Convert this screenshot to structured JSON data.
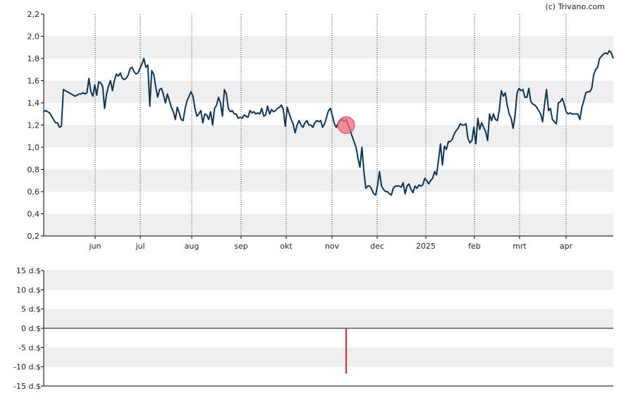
{
  "credit": "(c) Trivano.com",
  "colors": {
    "band": "#efefef",
    "line": "#0d3553",
    "marker": "#f06b7a",
    "bar": "#d62030",
    "axis": "#000000",
    "vgrid": "#333333"
  },
  "chart_data": [
    {
      "type": "line",
      "name": "price",
      "x_tick_labels": [
        "jun",
        "jul",
        "aug",
        "sep",
        "okt",
        "nov",
        "dec",
        "2025",
        "feb",
        "mrt",
        "apr"
      ],
      "y_tick_labels": [
        "2,2",
        "2,0",
        "1,8",
        "1,6",
        "1,4",
        "1,2",
        "1,0",
        "0,8",
        "0,6",
        "0,4",
        "0,2"
      ],
      "ylim": [
        0.2,
        2.2
      ],
      "grid": "alternating horizontal bands, dotted vertical month lines",
      "series_values": [
        1.32,
        1.33,
        1.32,
        1.31,
        1.28,
        1.25,
        1.22,
        1.22,
        1.18,
        1.19,
        1.52,
        1.51,
        1.5,
        1.49,
        1.48,
        1.47,
        1.46,
        1.47,
        1.48,
        1.48,
        1.49,
        1.48,
        1.49,
        1.62,
        1.5,
        1.46,
        1.56,
        1.47,
        1.59,
        1.58,
        1.55,
        1.35,
        1.48,
        1.55,
        1.6,
        1.51,
        1.6,
        1.66,
        1.64,
        1.67,
        1.62,
        1.61,
        1.62,
        1.65,
        1.71,
        1.72,
        1.68,
        1.66,
        1.67,
        1.71,
        1.75,
        1.8,
        1.72,
        1.74,
        1.37,
        1.69,
        1.66,
        1.55,
        1.45,
        1.52,
        1.53,
        1.47,
        1.4,
        1.48,
        1.42,
        1.36,
        1.32,
        1.25,
        1.36,
        1.31,
        1.25,
        1.24,
        1.35,
        1.42,
        1.46,
        1.5,
        1.46,
        1.35,
        1.28,
        1.3,
        1.33,
        1.22,
        1.3,
        1.29,
        1.25,
        1.32,
        1.2,
        1.35,
        1.38,
        1.45,
        1.4,
        1.28,
        1.52,
        1.48,
        1.35,
        1.32,
        1.33,
        1.3,
        1.3,
        1.26,
        1.27,
        1.26,
        1.29,
        1.28,
        1.27,
        1.33,
        1.31,
        1.32,
        1.3,
        1.31,
        1.3,
        1.35,
        1.28,
        1.29,
        1.37,
        1.3,
        1.34,
        1.32,
        1.33,
        1.35,
        1.36,
        1.38,
        1.34,
        1.19,
        1.36,
        1.3,
        1.25,
        1.21,
        1.13,
        1.2,
        1.24,
        1.2,
        1.18,
        1.22,
        1.24,
        1.2,
        1.2,
        1.18,
        1.22,
        1.24,
        1.23,
        1.24,
        1.18,
        1.21,
        1.27,
        1.33,
        1.35,
        1.28,
        1.21,
        1.18,
        1.22,
        1.24,
        1.25,
        1.23,
        1.25,
        1.2,
        1.16,
        1.1,
        1.05,
        1.0,
        0.9,
        0.82,
        1.0,
        0.78,
        0.63,
        0.65,
        0.65,
        0.62,
        0.58,
        0.57,
        0.66,
        0.78,
        0.65,
        0.62,
        0.6,
        0.6,
        0.58,
        0.57,
        0.63,
        0.65,
        0.65,
        0.65,
        0.64,
        0.68,
        0.58,
        0.65,
        0.67,
        0.62,
        0.59,
        0.65,
        0.63,
        0.66,
        0.65,
        0.66,
        0.72,
        0.7,
        0.67,
        0.7,
        0.72,
        0.78,
        0.75,
        0.88,
        1.03,
        0.84,
        1.01,
        0.98,
        1.05,
        1.05,
        1.07,
        1.12,
        1.15,
        1.17,
        1.21,
        1.2,
        1.2,
        1.21,
        1.08,
        1.04,
        1.06,
        1.18,
        1.03,
        1.26,
        1.16,
        1.22,
        1.18,
        1.14,
        1.06,
        1.3,
        1.24,
        1.3,
        1.25,
        1.24,
        1.34,
        1.51,
        1.46,
        1.49,
        1.38,
        1.3,
        1.26,
        1.17,
        1.29,
        1.49,
        1.53,
        1.51,
        1.52,
        1.45,
        1.45,
        1.53,
        1.41,
        1.39,
        1.38,
        1.36,
        1.33,
        1.3,
        1.23,
        1.39,
        1.52,
        1.33,
        1.35,
        1.25,
        1.23,
        1.21,
        1.4,
        1.41,
        1.44,
        1.39,
        1.32,
        1.3,
        1.31,
        1.3,
        1.3,
        1.3,
        1.3,
        1.25,
        1.36,
        1.42,
        1.49,
        1.5,
        1.5,
        1.53,
        1.65,
        1.7,
        1.72,
        1.8,
        1.82,
        1.84,
        1.85,
        1.84,
        1.87,
        1.85,
        1.8
      ],
      "marker_index": 154
    },
    {
      "type": "bar",
      "name": "dividend",
      "y_tick_labels": [
        "15 d.$",
        "10 d.$",
        "5 d.$",
        "0 d.$",
        "-5 d.$",
        "-10 d.$",
        "-15 d.$"
      ],
      "ylim": [
        -15,
        15
      ],
      "bars": [
        {
          "index": 154,
          "value": -11.8
        }
      ]
    }
  ]
}
